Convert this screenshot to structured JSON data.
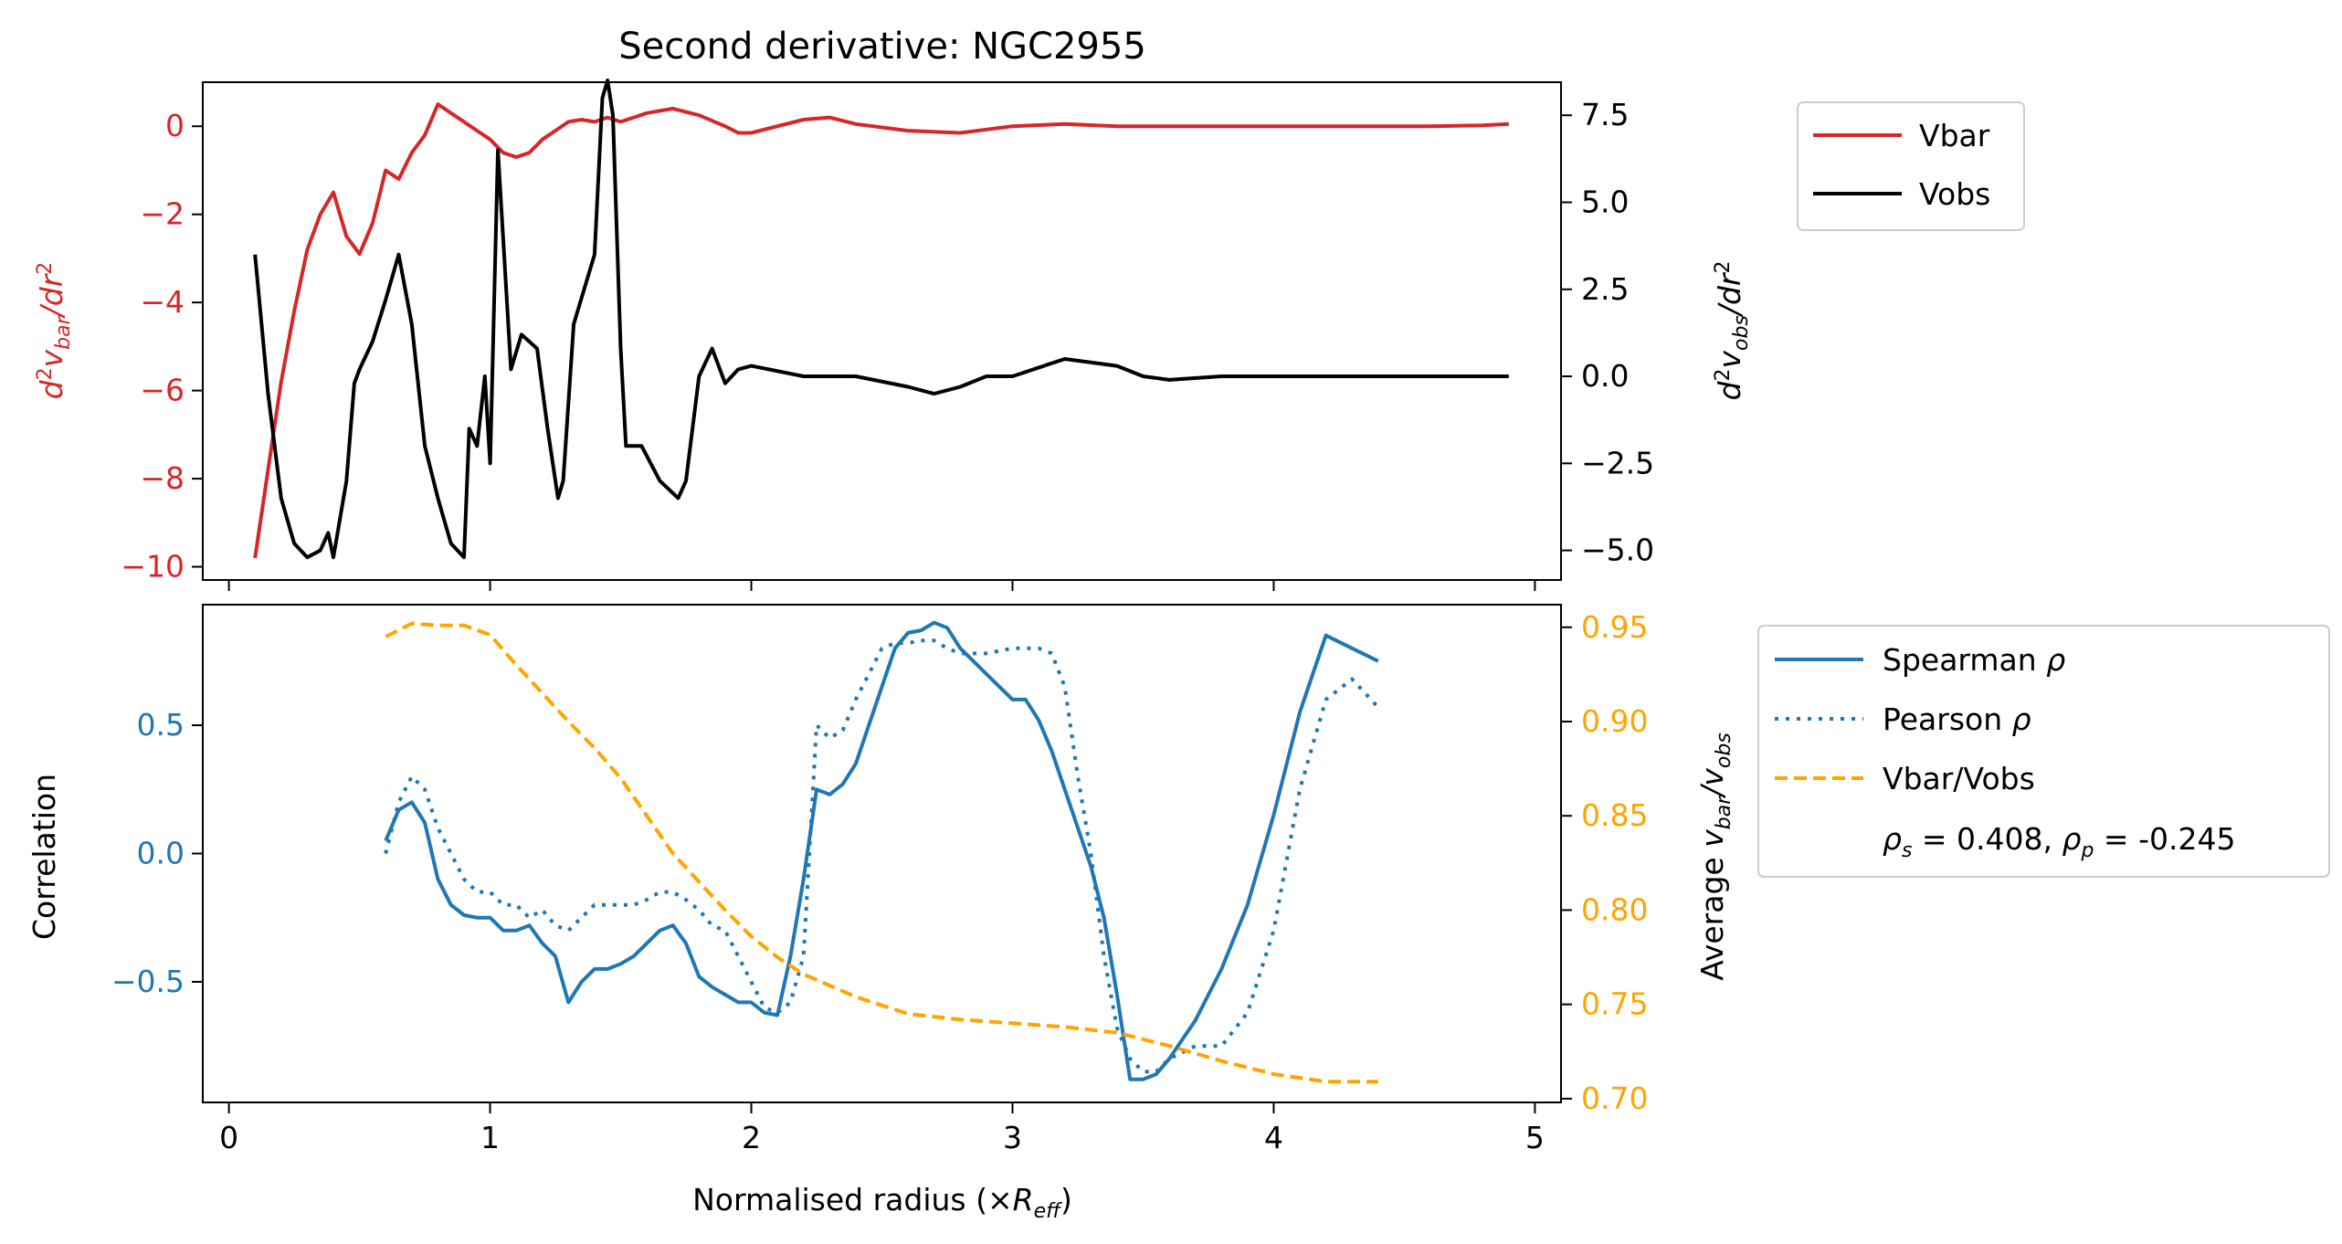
{
  "chart_data": [
    {
      "type": "line",
      "title": "Second derivative: NGC2955",
      "xlim": [
        -0.1,
        5.1
      ],
      "left_axis": {
        "label": "d²v_bar/dr²",
        "label_color": "#d62728",
        "ylim": [
          -10.3,
          1.0
        ],
        "ticks": [
          0,
          -2,
          -4,
          -6,
          -8,
          -10
        ],
        "tick_labels": [
          "0",
          "−2",
          "−4",
          "−6",
          "−8",
          "−10"
        ],
        "tick_color": "#d62728"
      },
      "right_axis": {
        "label": "d²v_obs/dr²",
        "label_color": "#000000",
        "ylim": [
          -5.85,
          8.45
        ],
        "ticks": [
          7.5,
          5.0,
          2.5,
          0.0,
          -2.5,
          -5.0
        ],
        "tick_labels": [
          "7.5",
          "5.0",
          "2.5",
          "0.0",
          "−2.5",
          "−5.0"
        ],
        "tick_color": "#000000"
      },
      "series": [
        {
          "name": "Vbar",
          "axis": "left",
          "color": "#d62728",
          "style": "solid",
          "x": [
            0.1,
            0.15,
            0.2,
            0.25,
            0.3,
            0.35,
            0.4,
            0.45,
            0.5,
            0.55,
            0.6,
            0.65,
            0.7,
            0.75,
            0.8,
            0.85,
            0.9,
            0.95,
            1.0,
            1.05,
            1.1,
            1.15,
            1.2,
            1.25,
            1.3,
            1.35,
            1.4,
            1.45,
            1.5,
            1.55,
            1.6,
            1.7,
            1.8,
            1.9,
            1.95,
            2.0,
            2.1,
            2.2,
            2.3,
            2.4,
            2.6,
            2.8,
            3.0,
            3.2,
            3.4,
            3.6,
            3.8,
            4.0,
            4.2,
            4.4,
            4.6,
            4.8,
            4.9
          ],
          "y": [
            -9.8,
            -7.8,
            -5.8,
            -4.2,
            -2.8,
            -2.0,
            -1.5,
            -2.5,
            -2.9,
            -2.2,
            -1.0,
            -1.2,
            -0.6,
            -0.2,
            0.5,
            0.3,
            0.1,
            -0.1,
            -0.3,
            -0.6,
            -0.7,
            -0.6,
            -0.3,
            -0.1,
            0.1,
            0.15,
            0.1,
            0.2,
            0.1,
            0.2,
            0.3,
            0.4,
            0.25,
            0.0,
            -0.15,
            -0.15,
            0.0,
            0.15,
            0.2,
            0.05,
            -0.1,
            -0.15,
            0.0,
            0.05,
            0.0,
            0.0,
            0.0,
            0.0,
            0.0,
            0.0,
            0.0,
            0.02,
            0.05
          ]
        },
        {
          "name": "Vobs",
          "axis": "right",
          "color": "#000000",
          "style": "solid",
          "x": [
            0.1,
            0.15,
            0.2,
            0.25,
            0.3,
            0.35,
            0.38,
            0.4,
            0.45,
            0.48,
            0.5,
            0.55,
            0.6,
            0.65,
            0.7,
            0.75,
            0.8,
            0.85,
            0.9,
            0.92,
            0.95,
            0.98,
            1.0,
            1.03,
            1.08,
            1.12,
            1.18,
            1.22,
            1.26,
            1.28,
            1.32,
            1.36,
            1.4,
            1.43,
            1.45,
            1.47,
            1.5,
            1.52,
            1.58,
            1.65,
            1.72,
            1.75,
            1.8,
            1.85,
            1.9,
            1.95,
            2.0,
            2.2,
            2.4,
            2.6,
            2.7,
            2.8,
            2.9,
            3.0,
            3.2,
            3.4,
            3.5,
            3.6,
            3.8,
            4.0,
            4.2,
            4.4,
            4.6,
            4.8,
            4.9
          ],
          "y": [
            3.5,
            -0.5,
            -3.5,
            -4.8,
            -5.2,
            -5.0,
            -4.5,
            -5.2,
            -3.0,
            -0.2,
            0.2,
            1.0,
            2.2,
            3.5,
            1.5,
            -2.0,
            -3.5,
            -4.8,
            -5.2,
            -1.5,
            -2.0,
            0.0,
            -2.5,
            6.5,
            0.2,
            1.2,
            0.8,
            -1.5,
            -3.5,
            -3.0,
            1.5,
            2.5,
            3.5,
            8.0,
            8.5,
            7.5,
            0.8,
            -2.0,
            -2.0,
            -3.0,
            -3.5,
            -3.0,
            0.0,
            0.8,
            -0.2,
            0.2,
            0.3,
            0.0,
            0.0,
            -0.3,
            -0.5,
            -0.3,
            0.0,
            0.0,
            0.5,
            0.3,
            0.0,
            -0.1,
            0.0,
            0.0,
            0.0,
            0.0,
            0.0,
            0.0,
            0.0
          ]
        }
      ],
      "legend": {
        "placement": "outside-upper-right",
        "items": [
          "Vbar",
          "Vobs"
        ]
      }
    },
    {
      "type": "line",
      "xlabel": "Normalised radius (×R_eff)",
      "xlim": [
        -0.1,
        5.1
      ],
      "x_ticks": [
        0,
        1,
        2,
        3,
        4,
        5
      ],
      "x_tick_labels": [
        "0",
        "1",
        "2",
        "3",
        "4",
        "5"
      ],
      "left_axis": {
        "label": "Correlation",
        "label_color": "#000000",
        "ylim": [
          -0.97,
          0.97
        ],
        "ticks": [
          0.5,
          0.0,
          -0.5
        ],
        "tick_labels": [
          "0.5",
          "0.0",
          "−0.5"
        ],
        "tick_color": "#1f77b4"
      },
      "right_axis": {
        "label": "Average v_bar/v_obs",
        "label_color": "#000000",
        "ylim": [
          0.698,
          0.962
        ],
        "ticks": [
          0.95,
          0.9,
          0.85,
          0.8,
          0.75,
          0.7
        ],
        "tick_labels": [
          "0.95",
          "0.90",
          "0.85",
          "0.80",
          "0.75",
          "0.70"
        ],
        "tick_color": "#ffa500"
      },
      "series": [
        {
          "name": "Spearman ρ",
          "axis": "left",
          "color": "#1f77b4",
          "style": "solid",
          "x": [
            0.6,
            0.65,
            0.7,
            0.75,
            0.8,
            0.85,
            0.9,
            0.95,
            1.0,
            1.05,
            1.1,
            1.15,
            1.2,
            1.25,
            1.3,
            1.35,
            1.4,
            1.45,
            1.5,
            1.55,
            1.6,
            1.65,
            1.7,
            1.75,
            1.8,
            1.85,
            1.9,
            1.95,
            2.0,
            2.05,
            2.1,
            2.15,
            2.2,
            2.25,
            2.3,
            2.35,
            2.4,
            2.45,
            2.5,
            2.55,
            2.6,
            2.65,
            2.7,
            2.75,
            2.8,
            2.85,
            2.9,
            2.95,
            3.0,
            3.05,
            3.1,
            3.15,
            3.2,
            3.25,
            3.3,
            3.35,
            3.4,
            3.45,
            3.5,
            3.55,
            3.6,
            3.7,
            3.8,
            3.9,
            4.0,
            4.1,
            4.2,
            4.3,
            4.4
          ],
          "y": [
            0.05,
            0.17,
            0.2,
            0.12,
            -0.1,
            -0.2,
            -0.24,
            -0.25,
            -0.25,
            -0.3,
            -0.3,
            -0.28,
            -0.35,
            -0.4,
            -0.58,
            -0.5,
            -0.45,
            -0.45,
            -0.43,
            -0.4,
            -0.35,
            -0.3,
            -0.28,
            -0.35,
            -0.48,
            -0.52,
            -0.55,
            -0.58,
            -0.58,
            -0.62,
            -0.63,
            -0.4,
            -0.1,
            0.25,
            0.23,
            0.27,
            0.35,
            0.5,
            0.65,
            0.8,
            0.86,
            0.87,
            0.9,
            0.88,
            0.8,
            0.75,
            0.7,
            0.65,
            0.6,
            0.6,
            0.52,
            0.4,
            0.25,
            0.1,
            -0.05,
            -0.25,
            -0.55,
            -0.88,
            -0.88,
            -0.86,
            -0.8,
            -0.65,
            -0.45,
            -0.2,
            0.15,
            0.55,
            0.85,
            0.8,
            0.75
          ]
        },
        {
          "name": "Pearson ρ",
          "axis": "left",
          "color": "#1f77b4",
          "style": "dotted",
          "x": [
            0.6,
            0.65,
            0.7,
            0.75,
            0.8,
            0.85,
            0.9,
            0.95,
            1.0,
            1.05,
            1.1,
            1.15,
            1.2,
            1.25,
            1.3,
            1.35,
            1.4,
            1.45,
            1.5,
            1.55,
            1.6,
            1.65,
            1.7,
            1.75,
            1.8,
            1.85,
            1.9,
            1.95,
            2.0,
            2.05,
            2.1,
            2.15,
            2.2,
            2.25,
            2.3,
            2.35,
            2.4,
            2.45,
            2.5,
            2.55,
            2.6,
            2.65,
            2.7,
            2.75,
            2.8,
            2.9,
            3.0,
            3.1,
            3.15,
            3.2,
            3.25,
            3.3,
            3.35,
            3.4,
            3.45,
            3.5,
            3.55,
            3.6,
            3.7,
            3.8,
            3.9,
            4.0,
            4.1,
            4.2,
            4.3,
            4.4
          ],
          "y": [
            0.0,
            0.2,
            0.3,
            0.25,
            0.1,
            0.0,
            -0.1,
            -0.15,
            -0.15,
            -0.2,
            -0.2,
            -0.25,
            -0.22,
            -0.28,
            -0.3,
            -0.25,
            -0.2,
            -0.2,
            -0.2,
            -0.2,
            -0.18,
            -0.15,
            -0.15,
            -0.18,
            -0.22,
            -0.28,
            -0.3,
            -0.4,
            -0.5,
            -0.6,
            -0.62,
            -0.58,
            -0.4,
            0.5,
            0.45,
            0.48,
            0.6,
            0.7,
            0.8,
            0.82,
            0.82,
            0.83,
            0.83,
            0.8,
            0.78,
            0.78,
            0.8,
            0.8,
            0.78,
            0.65,
            0.3,
            0.0,
            -0.4,
            -0.68,
            -0.8,
            -0.85,
            -0.85,
            -0.8,
            -0.75,
            -0.75,
            -0.62,
            -0.3,
            0.25,
            0.6,
            0.68,
            0.57
          ]
        },
        {
          "name": "Vbar/Vobs",
          "axis": "right",
          "color": "#ffa500",
          "style": "dashed",
          "x": [
            0.6,
            0.7,
            0.8,
            0.9,
            1.0,
            1.1,
            1.2,
            1.3,
            1.4,
            1.5,
            1.6,
            1.7,
            1.8,
            1.9,
            2.0,
            2.1,
            2.2,
            2.4,
            2.6,
            2.8,
            3.0,
            3.2,
            3.4,
            3.6,
            3.8,
            4.0,
            4.2,
            4.4
          ],
          "y": [
            0.945,
            0.952,
            0.951,
            0.951,
            0.946,
            0.93,
            0.915,
            0.9,
            0.886,
            0.87,
            0.85,
            0.83,
            0.815,
            0.8,
            0.786,
            0.775,
            0.766,
            0.754,
            0.745,
            0.742,
            0.74,
            0.738,
            0.735,
            0.728,
            0.72,
            0.713,
            0.709,
            0.709
          ]
        }
      ],
      "legend": {
        "placement": "outside-upper-right",
        "items": [
          "Spearman ρ",
          "Pearson ρ",
          "Vbar/Vobs"
        ],
        "annotation": "ρ_s = 0.408, ρ_p = -0.245"
      }
    }
  ]
}
